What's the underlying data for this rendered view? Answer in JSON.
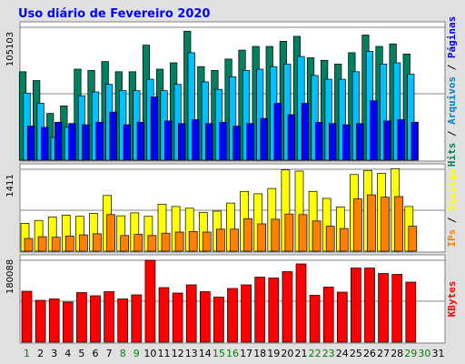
{
  "colors": {
    "background": "#e0e0e0",
    "plot_background": "#ffffff",
    "title": "#0000ff",
    "hits": "#008060",
    "files": "#00c0ff",
    "pages": "#0000ff",
    "visits": "#ffff00",
    "sites": "#ff8000",
    "kbytes": "#ff0000",
    "day_weekday": "#000000",
    "day_weekend": "#008000"
  },
  "chart_data": {
    "type": "bar",
    "title": "Uso diário de Fevereiro 2020",
    "days": [
      "1",
      "2",
      "3",
      "4",
      "5",
      "6",
      "7",
      "8",
      "9",
      "10",
      "11",
      "12",
      "13",
      "14",
      "15",
      "16",
      "17",
      "18",
      "19",
      "20",
      "21",
      "22",
      "23",
      "24",
      "25",
      "26",
      "27",
      "28",
      "29",
      "30",
      "31"
    ],
    "weekend_days": [
      "1",
      "8",
      "9",
      "15",
      "16",
      "22",
      "23",
      "29",
      "30"
    ],
    "panels": [
      {
        "id": "hits",
        "ymax_label": "105103",
        "ymax": 105103,
        "ylabel_parts": [
          {
            "text": "Hits",
            "color": "#008060"
          },
          {
            "text": " / ",
            "color": "#000000"
          },
          {
            "text": "Arquivos",
            "color": "#0080c0"
          },
          {
            "text": " / ",
            "color": "#000000"
          },
          {
            "text": "Páginas",
            "color": "#0000ff"
          }
        ],
        "series": [
          {
            "name": "Hits",
            "color": "#008060",
            "values": [
              70000,
              63000,
              37000,
              43000,
              72000,
              71000,
              78000,
              70000,
              70000,
              91000,
              72000,
              77000,
              102000,
              74000,
              71000,
              80000,
              87000,
              90000,
              90000,
              94000,
              98000,
              81000,
              79000,
              76000,
              85000,
              99000,
              90000,
              92000,
              84000,
              0,
              0
            ]
          },
          {
            "name": "Arquivos",
            "color": "#00c0ff",
            "values": [
              53000,
              45000,
              18000,
              26000,
              51000,
              54000,
              60000,
              55000,
              55000,
              64000,
              55000,
              60000,
              85000,
              62000,
              56000,
              66000,
              71000,
              72000,
              74000,
              76000,
              82000,
              67000,
              64000,
              64000,
              70000,
              86000,
              76000,
              77000,
              68000,
              0,
              0
            ]
          },
          {
            "name": "Páginas",
            "color": "#0000ff",
            "values": [
              27000,
              26000,
              30000,
              29000,
              28000,
              30000,
              38000,
              28000,
              30000,
              50000,
              31000,
              29000,
              32000,
              29000,
              30000,
              27000,
              29000,
              33000,
              45000,
              36000,
              45000,
              30000,
              29000,
              28000,
              29000,
              47000,
              31000,
              32000,
              30000,
              0,
              0
            ]
          }
        ]
      },
      {
        "id": "visits",
        "ymax_label": "1411",
        "ymax": 1411,
        "ylabel_parts": [
          {
            "text": "IPs",
            "color": "#ff8000"
          },
          {
            "text": " / ",
            "color": "#000000"
          },
          {
            "text": "Visitas",
            "color": "#ffff00"
          }
        ],
        "series": [
          {
            "name": "Visitas",
            "color": "#ffff00",
            "values": [
              480,
              530,
              590,
              620,
              600,
              650,
              960,
              610,
              660,
              600,
              810,
              770,
              740,
              670,
              690,
              830,
              1030,
              990,
              1080,
              1400,
              1380,
              1030,
              910,
              760,
              1320,
              1390,
              1340,
              1420,
              770,
              0,
              0
            ]
          },
          {
            "name": "IPs",
            "color": "#ff8000",
            "values": [
              220,
              250,
              240,
              260,
              280,
              300,
              630,
              270,
              290,
              270,
              310,
              330,
              340,
              330,
              380,
              380,
              560,
              470,
              550,
              640,
              630,
              520,
              430,
              390,
              900,
              970,
              930,
              940,
              430,
              0,
              0
            ]
          }
        ]
      },
      {
        "id": "kbytes",
        "ymax_label": "180088",
        "ymax": 180088,
        "ylabel_parts": [
          {
            "text": "KBytes",
            "color": "#ff0000"
          }
        ],
        "series": [
          {
            "name": "KBytes",
            "color": "#ff0000",
            "values": [
              112000,
              92000,
              95000,
              88000,
              109000,
              102000,
              111000,
              95000,
              104000,
              180088,
              120000,
              108000,
              126000,
              111000,
              99000,
              118000,
              126000,
              143000,
              141000,
              155000,
              172000,
              103000,
              121000,
              110000,
              163000,
              163000,
              151000,
              149000,
              132000,
              0,
              0
            ]
          }
        ]
      }
    ]
  }
}
